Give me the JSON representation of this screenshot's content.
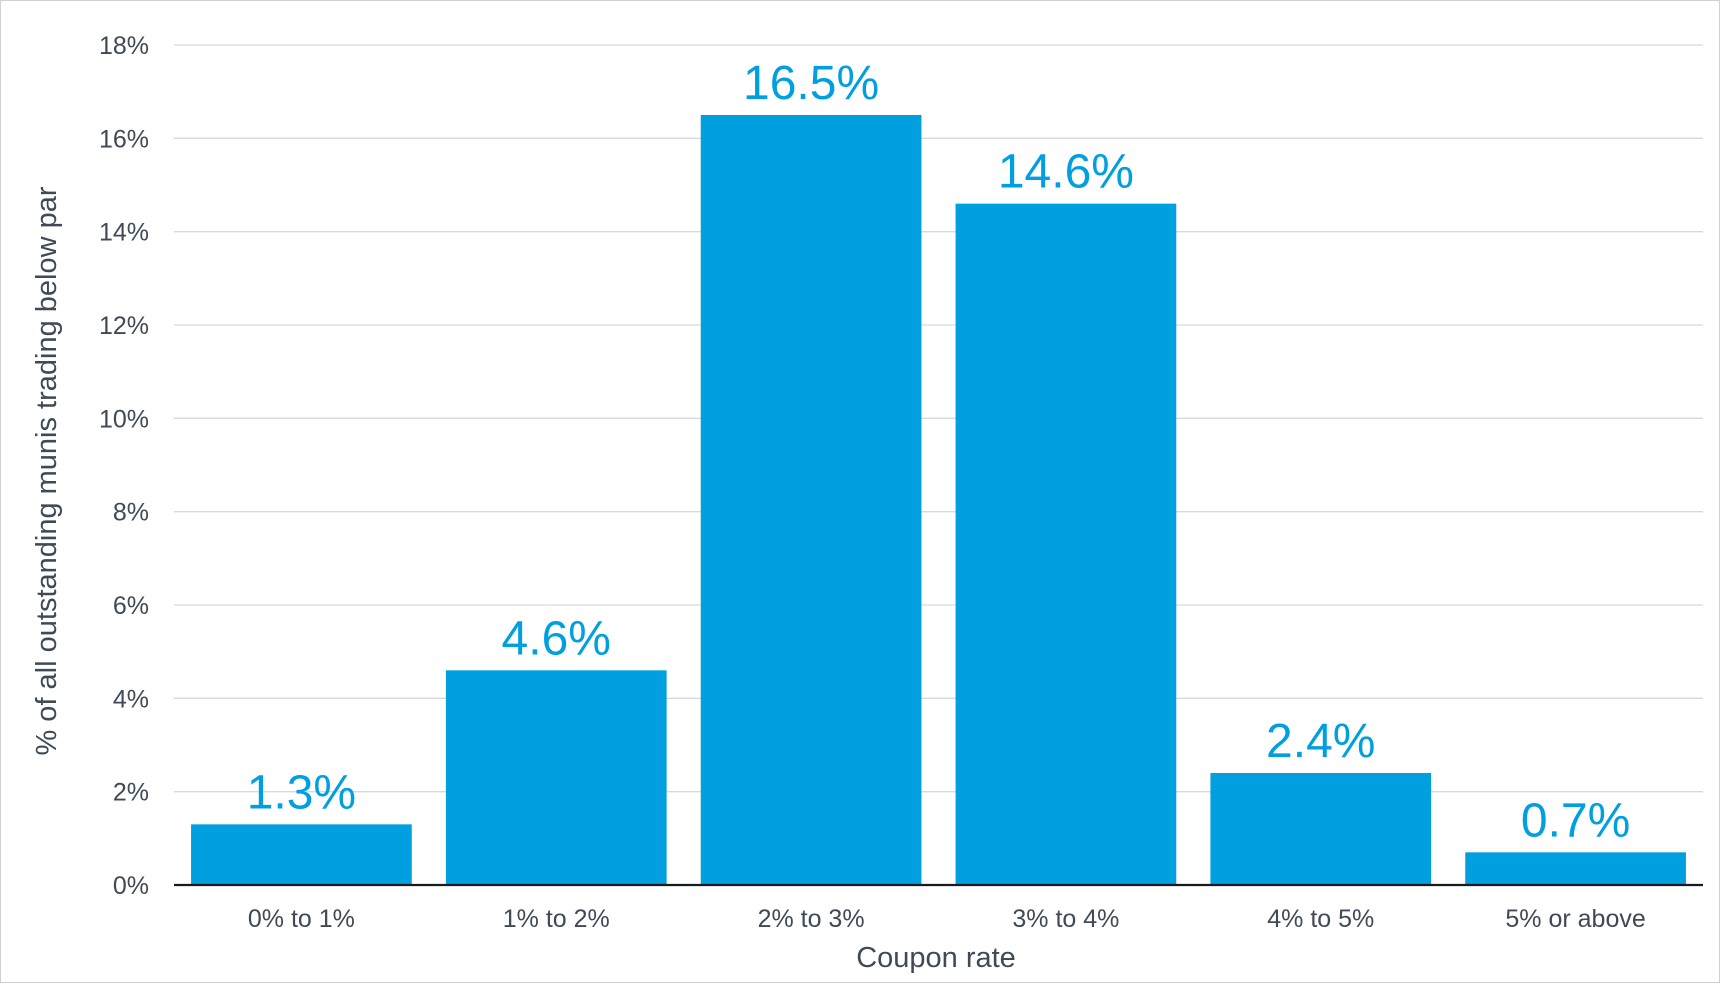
{
  "chart_data": {
    "type": "bar",
    "categories": [
      "0% to 1%",
      "1% to 2%",
      "2% to 3%",
      "3% to 4%",
      "4% to 5%",
      "5% or above"
    ],
    "values": [
      1.3,
      4.6,
      16.5,
      14.6,
      2.4,
      0.7
    ],
    "data_labels": [
      "1.3%",
      "4.6%",
      "16.5%",
      "14.6%",
      "2.4%",
      "0.7%"
    ],
    "title": "",
    "xlabel": "Coupon rate",
    "ylabel": "% of all outstanding munis trading below par",
    "ylim": [
      0,
      18
    ],
    "y_ticks": [
      0,
      2,
      4,
      6,
      8,
      10,
      12,
      14,
      16,
      18
    ],
    "y_tick_labels": [
      "0%",
      "2%",
      "4%",
      "6%",
      "8%",
      "10%",
      "12%",
      "14%",
      "16%",
      "18%"
    ],
    "grid": true,
    "legend": "none",
    "bar_color": "#009FDF",
    "label_color": "#009FDF",
    "text_color": "#3F4A56",
    "grid_color": "#D9D9D9"
  }
}
